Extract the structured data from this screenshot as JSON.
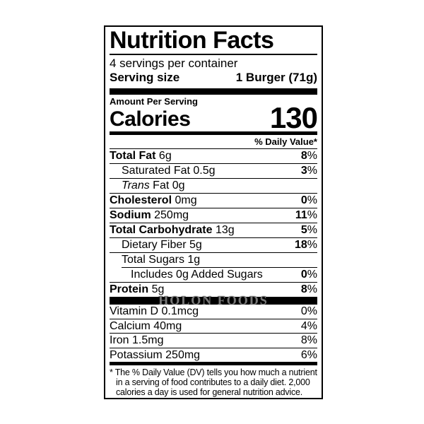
{
  "header": {
    "title": "Nutrition Facts",
    "servings_per_container": "4 servings per container",
    "serving_size_label": "Serving size",
    "serving_size_value": "1 Burger (71g)"
  },
  "calories": {
    "amount_per_serving_label": "Amount Per Serving",
    "calories_label": "Calories",
    "calories_value": "130"
  },
  "daily_value_header": "% Daily Value*",
  "percent_sign": "%",
  "nutrient_rows": [
    {
      "bold": "Total Fat",
      "rest": " 6g",
      "dv": "8",
      "indent": 0
    },
    {
      "rest": "Saturated Fat 0.5g",
      "dv": "3",
      "indent": 1
    },
    {
      "italic": "Trans",
      "rest": " Fat 0g",
      "indent": 1
    },
    {
      "bold": "Cholesterol",
      "rest": " 0mg",
      "dv": "0",
      "indent": 0
    },
    {
      "bold": "Sodium",
      "rest": " 250mg",
      "dv": "11",
      "indent": 0
    },
    {
      "bold": "Total Carbohydrate",
      "rest": " 13g",
      "dv": "5",
      "indent": 0
    },
    {
      "rest": "Dietary Fiber 5g",
      "dv": "18",
      "indent": 1
    },
    {
      "rest": "Total Sugars 1g",
      "indent": 1
    },
    {
      "rest": "Includes 0g Added Sugars",
      "dv": "0",
      "indent": 2,
      "rule_indent": 1
    },
    {
      "bold": "Protein",
      "rest": " 5g",
      "dv": "8",
      "indent": 0
    }
  ],
  "watermark": "HOLON FOODS",
  "vitamin_rows": [
    {
      "rest": "Vitamin D 0.1mcg",
      "dv": "0"
    },
    {
      "rest": "Calcium 40mg",
      "dv": "4"
    },
    {
      "rest": "Iron 1.5mg",
      "dv": "8"
    },
    {
      "rest": "Potassium 250mg",
      "dv": "6"
    }
  ],
  "footnote": {
    "marker": "*",
    "text": " The % Daily Value (DV) tells you how much a nutrient in a serving of food contributes to a daily diet. 2,000 calories a day is used for general nutrition advice."
  }
}
